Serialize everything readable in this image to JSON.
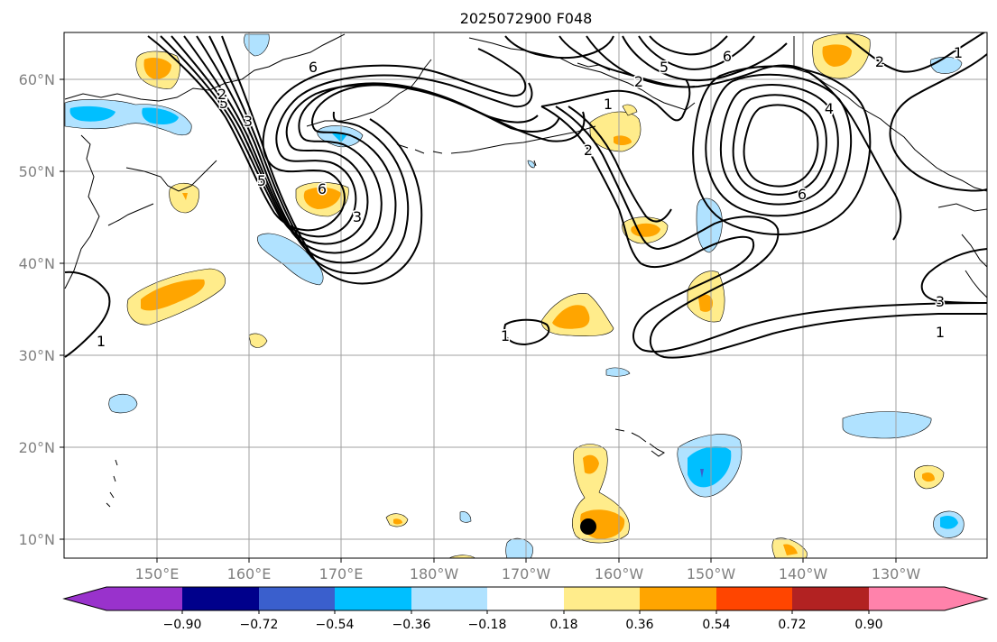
{
  "title": "2025072900 F048",
  "lat_labels": [
    "60°N",
    "50°N",
    "40°N",
    "30°N",
    "20°N",
    "10°N"
  ],
  "lon_labels": [
    "150°E",
    "160°E",
    "170°E",
    "180°W",
    "170°W",
    "160°W",
    "150°W",
    "140°W",
    "130°W"
  ],
  "colorbar": {
    "colors": [
      "#9932cc",
      "#00008b",
      "#3a5fcd",
      "#00bfff",
      "#b0e2ff",
      "#ffffff",
      "#ffec8b",
      "#ffa500",
      "#ff4500",
      "#b22222",
      "#ff82ab"
    ],
    "ticks": [
      "−0.90",
      "−0.72",
      "−0.54",
      "−0.36",
      "−0.18",
      "0.18",
      "0.36",
      "0.54",
      "0.72",
      "0.90"
    ]
  },
  "contour_labels": [
    "6",
    "5",
    "3",
    "2",
    "6",
    "5",
    "3",
    "2",
    "1",
    "6",
    "4",
    "2",
    "1",
    "3",
    "1",
    "1",
    "5",
    "1",
    "2",
    "6"
  ]
}
